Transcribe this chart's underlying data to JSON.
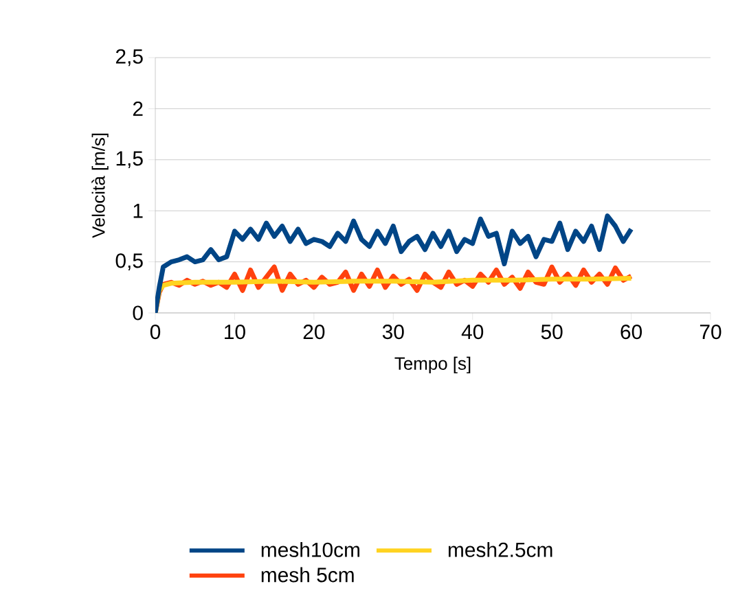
{
  "chart_data": {
    "type": "line",
    "xlabel": "Tempo [s]",
    "ylabel": "Velocità [m/s]",
    "xlim": [
      0,
      70
    ],
    "ylim": [
      0,
      2.5
    ],
    "xticks": [
      0,
      10,
      20,
      30,
      40,
      50,
      60,
      70
    ],
    "yticks": [
      0,
      {
        "value": 0.5,
        "label": "0,5"
      },
      1,
      {
        "value": 1.5,
        "label": "1,5"
      },
      2,
      {
        "value": 2.5,
        "label": "2,5"
      }
    ],
    "grid": "y",
    "legend": "bottom",
    "line_style": "solid",
    "marker": "none",
    "series": [
      {
        "name": "mesh10cm",
        "color": "#004586",
        "x": [
          0,
          0.5,
          1,
          2,
          3,
          4,
          5,
          6,
          7,
          8,
          9,
          10,
          11,
          12,
          13,
          14,
          15,
          16,
          17,
          18,
          19,
          20,
          21,
          22,
          23,
          24,
          25,
          26,
          27,
          28,
          29,
          30,
          31,
          32,
          33,
          34,
          35,
          36,
          37,
          38,
          39,
          40,
          41,
          42,
          43,
          44,
          45,
          46,
          47,
          48,
          49,
          50,
          51,
          52,
          53,
          54,
          55,
          56,
          57,
          58,
          59,
          60
        ],
        "values": [
          0,
          0.25,
          0.45,
          0.5,
          0.52,
          0.55,
          0.5,
          0.52,
          0.62,
          0.52,
          0.55,
          0.8,
          0.72,
          0.82,
          0.72,
          0.88,
          0.75,
          0.85,
          0.7,
          0.82,
          0.68,
          0.72,
          0.7,
          0.65,
          0.78,
          0.7,
          0.9,
          0.72,
          0.65,
          0.8,
          0.68,
          0.85,
          0.6,
          0.7,
          0.75,
          0.62,
          0.78,
          0.65,
          0.8,
          0.6,
          0.72,
          0.68,
          0.92,
          0.75,
          0.78,
          0.48,
          0.8,
          0.68,
          0.75,
          0.55,
          0.72,
          0.7,
          0.88,
          0.62,
          0.8,
          0.7,
          0.85,
          0.62,
          0.95,
          0.85,
          0.7,
          0.82
        ]
      },
      {
        "name": "mesh2.5cm",
        "color": "#ffd320",
        "x": [
          0,
          0.5,
          1,
          2,
          5,
          10,
          15,
          20,
          25,
          30,
          35,
          40,
          45,
          50,
          55,
          60
        ],
        "values": [
          0,
          0.22,
          0.27,
          0.29,
          0.3,
          0.3,
          0.31,
          0.3,
          0.31,
          0.31,
          0.3,
          0.32,
          0.32,
          0.33,
          0.33,
          0.34
        ]
      },
      {
        "name": "mesh 5cm",
        "color": "#ff420e",
        "x": [
          0,
          0.5,
          1,
          2,
          3,
          4,
          5,
          6,
          7,
          8,
          9,
          10,
          11,
          12,
          13,
          14,
          15,
          16,
          17,
          18,
          19,
          20,
          21,
          22,
          23,
          24,
          25,
          26,
          27,
          28,
          29,
          30,
          31,
          32,
          33,
          34,
          35,
          36,
          37,
          38,
          39,
          40,
          41,
          42,
          43,
          44,
          45,
          46,
          47,
          48,
          49,
          50,
          51,
          52,
          53,
          54,
          55,
          56,
          57,
          58,
          59,
          60
        ],
        "values": [
          0,
          0.2,
          0.28,
          0.3,
          0.27,
          0.32,
          0.28,
          0.31,
          0.27,
          0.3,
          0.25,
          0.38,
          0.22,
          0.42,
          0.25,
          0.35,
          0.45,
          0.22,
          0.38,
          0.28,
          0.32,
          0.25,
          0.35,
          0.28,
          0.3,
          0.4,
          0.22,
          0.38,
          0.26,
          0.42,
          0.25,
          0.36,
          0.28,
          0.33,
          0.22,
          0.38,
          0.3,
          0.25,
          0.4,
          0.28,
          0.32,
          0.26,
          0.38,
          0.3,
          0.42,
          0.28,
          0.35,
          0.24,
          0.4,
          0.3,
          0.28,
          0.45,
          0.3,
          0.38,
          0.27,
          0.42,
          0.3,
          0.38,
          0.28,
          0.44,
          0.32,
          0.36
        ]
      }
    ]
  }
}
